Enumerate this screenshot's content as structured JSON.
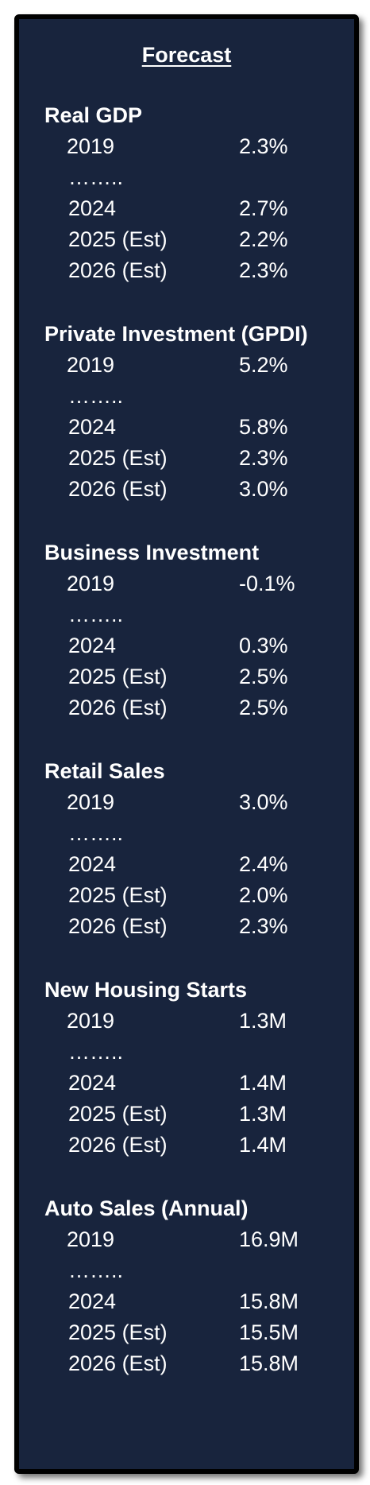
{
  "title": "Forecast",
  "sections": [
    {
      "name": "Real GDP",
      "rows": [
        {
          "label": "2019",
          "value": "2.3%"
        },
        {
          "label": "……..",
          "value": ""
        },
        {
          "label": "2024",
          "value": "2.7%"
        },
        {
          "label": "2025 (Est)",
          "value": "2.2%"
        },
        {
          "label": "2026 (Est)",
          "value": "2.3%"
        }
      ]
    },
    {
      "name": "Private Investment (GPDI)",
      "rows": [
        {
          "label": "2019",
          "value": "5.2%"
        },
        {
          "label": "……..",
          "value": ""
        },
        {
          "label": "2024",
          "value": "5.8%"
        },
        {
          "label": "2025 (Est)",
          "value": "2.3%"
        },
        {
          "label": "2026 (Est)",
          "value": "3.0%"
        }
      ]
    },
    {
      "name": "Business Investment",
      "rows": [
        {
          "label": "2019",
          "value": "-0.1%"
        },
        {
          "label": "……..",
          "value": ""
        },
        {
          "label": "2024",
          "value": "0.3%"
        },
        {
          "label": "2025 (Est)",
          "value": "2.5%"
        },
        {
          "label": "2026 (Est)",
          "value": "2.5%"
        }
      ]
    },
    {
      "name": "Retail Sales",
      "rows": [
        {
          "label": "2019",
          "value": "3.0%"
        },
        {
          "label": "……..",
          "value": ""
        },
        {
          "label": "2024",
          "value": "2.4%"
        },
        {
          "label": "2025 (Est)",
          "value": "2.0%"
        },
        {
          "label": "2026 (Est)",
          "value": "2.3%"
        }
      ]
    },
    {
      "name": "New Housing Starts",
      "rows": [
        {
          "label": "2019",
          "value": "1.3M"
        },
        {
          "label": "……..",
          "value": ""
        },
        {
          "label": "2024",
          "value": "1.4M"
        },
        {
          "label": "2025 (Est)",
          "value": "1.3M"
        },
        {
          "label": "2026 (Est)",
          "value": "1.4M"
        }
      ]
    },
    {
      "name": "Auto Sales (Annual)",
      "rows": [
        {
          "label": "2019",
          "value": "16.9M"
        },
        {
          "label": "……..",
          "value": ""
        },
        {
          "label": "2024",
          "value": "15.8M"
        },
        {
          "label": "2025 (Est)",
          "value": "15.5M"
        },
        {
          "label": "2026 (Est)",
          "value": "15.8M"
        }
      ]
    }
  ]
}
